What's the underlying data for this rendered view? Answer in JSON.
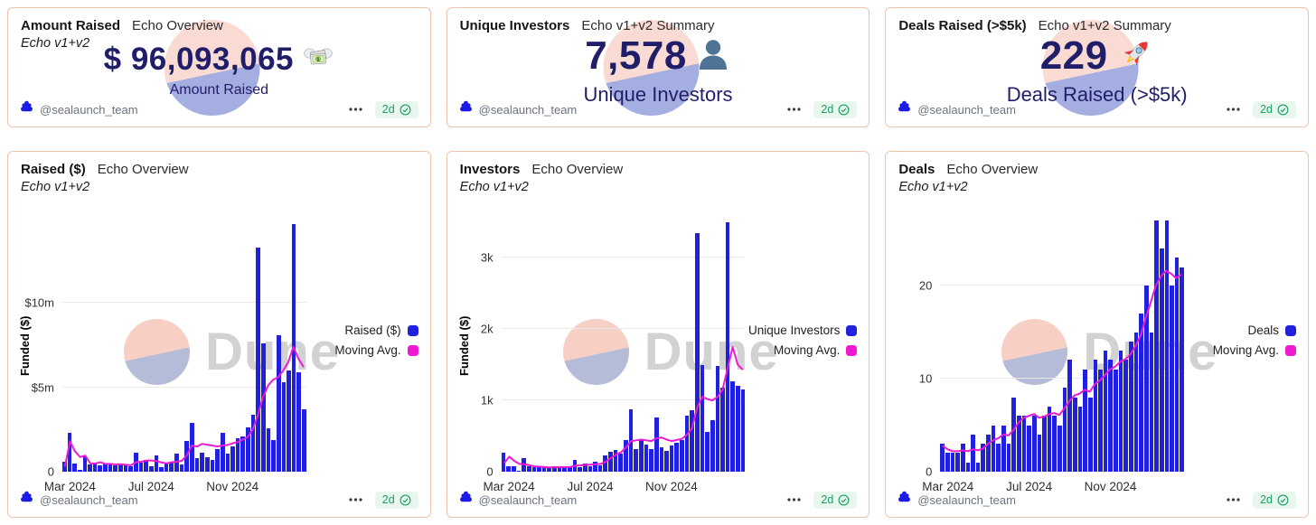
{
  "watermark": {
    "text": "Dune"
  },
  "footer": {
    "author": "@sealaunch_team",
    "logo_icon": "sealaunch-logo-icon",
    "menu_icon": "ellipsis-icon",
    "age_label": "2d",
    "verified_icon": "check-circle-icon",
    "age_badge_bg": "#e8f6ee",
    "age_badge_color": "#16a160"
  },
  "colors": {
    "bar": "#2121dd",
    "line": "#ee19d2",
    "value_text": "#211e69",
    "card_border": "#f0c3ab",
    "watermark_top": "#f8cfc5",
    "watermark_bottom": "#b5bcd7"
  },
  "stat_cards": [
    {
      "title": "Amount Raised",
      "context": "Echo Overview",
      "subtitle": "Echo v1+v2",
      "value": "$ 96,093,065",
      "icon": "money-with-wings-emoji",
      "label": "Amount Raised"
    },
    {
      "title": "Unique Investors",
      "context": "Echo v1+v2 Summary",
      "subtitle": "",
      "value": "7,578",
      "icon": "bust-silhouette-emoji",
      "label": "Unique Investors"
    },
    {
      "title": "Deals Raised (>$5k)",
      "context": "Echo v1+v2 Summary",
      "subtitle": "",
      "value": "229",
      "icon": "rocket-emoji",
      "label": "Deals Raised (>$5k)"
    }
  ],
  "chart_data": [
    {
      "type": "bar",
      "title": "Raised ($)",
      "context": "Echo Overview",
      "subtitle": "Echo v1+v2",
      "ylabel": "Funded ($)",
      "unit": "$ millions",
      "ylim": [
        0,
        15
      ],
      "grid": true,
      "legend_position": "right",
      "y_ticks": [
        {
          "label": "$10m",
          "value": 10
        },
        {
          "label": "$5m",
          "value": 5
        },
        {
          "label": "0",
          "value": 0
        }
      ],
      "x_ticks": [
        {
          "label": "Mar 2024",
          "index": 1
        },
        {
          "label": "Jul 2024",
          "index": 17
        },
        {
          "label": "Nov 2024",
          "index": 33
        }
      ],
      "series": [
        {
          "name": "Raised ($)",
          "type": "bar",
          "values": [
            0.6,
            2.3,
            0.5,
            0.1,
            0.9,
            0.45,
            0.5,
            0.4,
            0.5,
            0.45,
            0.35,
            0.45,
            0.4,
            0.3,
            1.1,
            0.55,
            0.7,
            0.3,
            0.95,
            0.25,
            0.5,
            0.55,
            1.05,
            0.45,
            1.8,
            2.9,
            0.8,
            1.1,
            0.85,
            0.7,
            1.35,
            2.3,
            1.05,
            1.5,
            2.0,
            2.1,
            2.6,
            3.4,
            13.3,
            7.6,
            2.55,
            1.9,
            8.1,
            5.3,
            6.0,
            14.7,
            5.9,
            3.7
          ]
        },
        {
          "name": "Moving Avg.",
          "type": "line",
          "values": [
            0.3,
            1.8,
            1.2,
            0.87,
            0.95,
            0.49,
            0.49,
            0.56,
            0.46,
            0.46,
            0.43,
            0.44,
            0.41,
            0.38,
            0.56,
            0.59,
            0.66,
            0.66,
            0.63,
            0.55,
            0.5,
            0.56,
            0.59,
            0.64,
            0.96,
            1.55,
            1.49,
            1.65,
            1.6,
            1.55,
            1.5,
            1.55,
            1.58,
            1.68,
            1.76,
            1.9,
            2.05,
            2.5,
            3.35,
            4.4,
            5.1,
            5.45,
            5.6,
            6.0,
            6.5,
            7.4,
            6.7,
            6.2
          ]
        }
      ]
    },
    {
      "type": "bar",
      "title": "Investors",
      "context": "Echo Overview",
      "subtitle": "Echo v1+v2",
      "ylabel": "Funded ($)",
      "unit": "investors",
      "ylim": [
        0,
        3550
      ],
      "grid": true,
      "legend_position": "right",
      "y_ticks": [
        {
          "label": "3k",
          "value": 3000
        },
        {
          "label": "2k",
          "value": 2000
        },
        {
          "label": "1k",
          "value": 1000
        },
        {
          "label": "0",
          "value": 0
        }
      ],
      "x_ticks": [
        {
          "label": "Mar 2024",
          "index": 1
        },
        {
          "label": "Jul 2024",
          "index": 17
        },
        {
          "label": "Nov 2024",
          "index": 33
        }
      ],
      "series": [
        {
          "name": "Unique Investors",
          "type": "bar",
          "values": [
            270,
            80,
            80,
            15,
            185,
            70,
            60,
            80,
            60,
            55,
            70,
            80,
            60,
            70,
            160,
            60,
            120,
            70,
            140,
            90,
            230,
            280,
            310,
            250,
            440,
            870,
            320,
            440,
            380,
            320,
            760,
            340,
            290,
            370,
            410,
            440,
            790,
            860,
            3350,
            1500,
            560,
            720,
            1480,
            1180,
            3500,
            1270,
            1210,
            1160
          ]
        },
        {
          "name": "Moving Avg.",
          "type": "line",
          "values": [
            120,
            210,
            150,
            110,
            105,
            90,
            75,
            70,
            65,
            60,
            62,
            65,
            63,
            65,
            85,
            88,
            95,
            98,
            105,
            110,
            140,
            190,
            240,
            270,
            340,
            430,
            440,
            450,
            440,
            430,
            470,
            480,
            450,
            430,
            445,
            460,
            520,
            610,
            900,
            1050,
            1020,
            1000,
            1050,
            1150,
            1450,
            1750,
            1500,
            1430
          ]
        }
      ]
    },
    {
      "type": "bar",
      "title": "Deals",
      "context": "Echo Overview",
      "subtitle": "Echo v1+v2",
      "ylabel": "",
      "unit": "deals",
      "ylim": [
        0,
        27.2
      ],
      "grid": true,
      "legend_position": "right",
      "y_ticks": [
        {
          "label": "20",
          "value": 20
        },
        {
          "label": "10",
          "value": 10
        },
        {
          "label": "0",
          "value": 0
        }
      ],
      "x_ticks": [
        {
          "label": "Mar 2024",
          "index": 1
        },
        {
          "label": "Jul 2024",
          "index": 17
        },
        {
          "label": "Nov 2024",
          "index": 33
        }
      ],
      "series": [
        {
          "name": "Deals",
          "type": "bar",
          "values": [
            3,
            2,
            2,
            2,
            3,
            1,
            4,
            1,
            3,
            4,
            5,
            3,
            5,
            3,
            8,
            6,
            6,
            5,
            6,
            4,
            6,
            7,
            6,
            5,
            9,
            12,
            8,
            7,
            11,
            8,
            12,
            11,
            13,
            12,
            11,
            13,
            12,
            14,
            15,
            17,
            20,
            15,
            27,
            24,
            27,
            20,
            23,
            22
          ]
        },
        {
          "name": "Moving Avg.",
          "type": "line",
          "values": [
            2.8,
            2.4,
            2.2,
            2.2,
            2.3,
            2.2,
            2.4,
            2.3,
            2.5,
            3.0,
            3.4,
            3.6,
            4.0,
            3.9,
            4.5,
            5.3,
            5.8,
            6.0,
            6.2,
            5.8,
            5.9,
            6.2,
            6.3,
            6.1,
            6.8,
            7.6,
            8.2,
            8.4,
            8.8,
            8.6,
            9.4,
            9.8,
            10.4,
            11.0,
            11.3,
            11.8,
            12.1,
            12.6,
            13.5,
            14.6,
            16.5,
            18.2,
            20.0,
            21.0,
            21.6,
            21.3,
            20.8,
            21.2
          ]
        }
      ]
    }
  ]
}
